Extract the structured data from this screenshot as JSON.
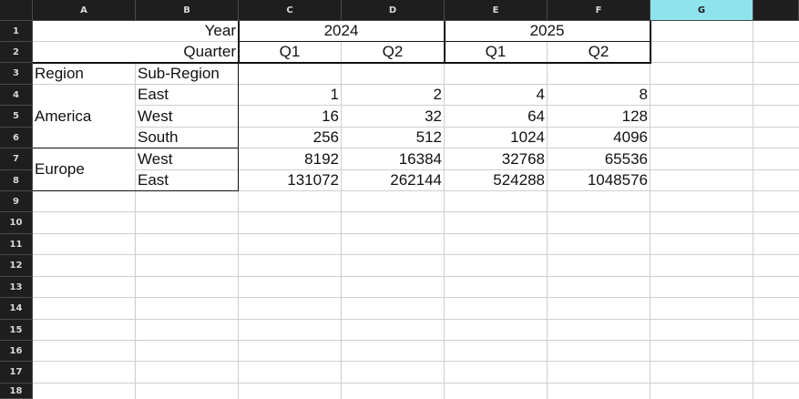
{
  "columns": [
    "A",
    "B",
    "C",
    "D",
    "E",
    "F",
    "G"
  ],
  "selected_column": "G",
  "rows": [
    "1",
    "2",
    "3",
    "4",
    "5",
    "6",
    "7",
    "8",
    "9",
    "10",
    "11",
    "12",
    "13",
    "14",
    "15",
    "16",
    "17",
    "18"
  ],
  "cells": {
    "year_label": "Year",
    "quarter_label": "Quarter",
    "year_2024": "2024",
    "year_2025": "2025",
    "q_c2": "Q1",
    "q_d2": "Q2",
    "q_e2": "Q1",
    "q_f2": "Q2",
    "region_header": "Region",
    "subregion_header": "Sub-Region",
    "region_america": "America",
    "region_europe": "Europe",
    "sub_b4": "East",
    "sub_b5": "West",
    "sub_b6": "South",
    "sub_b7": "West",
    "sub_b8": "East"
  },
  "values": [
    [
      "1",
      "2",
      "4",
      "8"
    ],
    [
      "16",
      "32",
      "64",
      "128"
    ],
    [
      "256",
      "512",
      "1024",
      "4096"
    ],
    [
      "8192",
      "16384",
      "32768",
      "65536"
    ],
    [
      "131072",
      "262144",
      "524288",
      "1048576"
    ]
  ],
  "colors": {
    "header_bg": "#1e1e1e",
    "selected_header_bg": "#8ee3ec",
    "grid": "#cfcfcf"
  }
}
